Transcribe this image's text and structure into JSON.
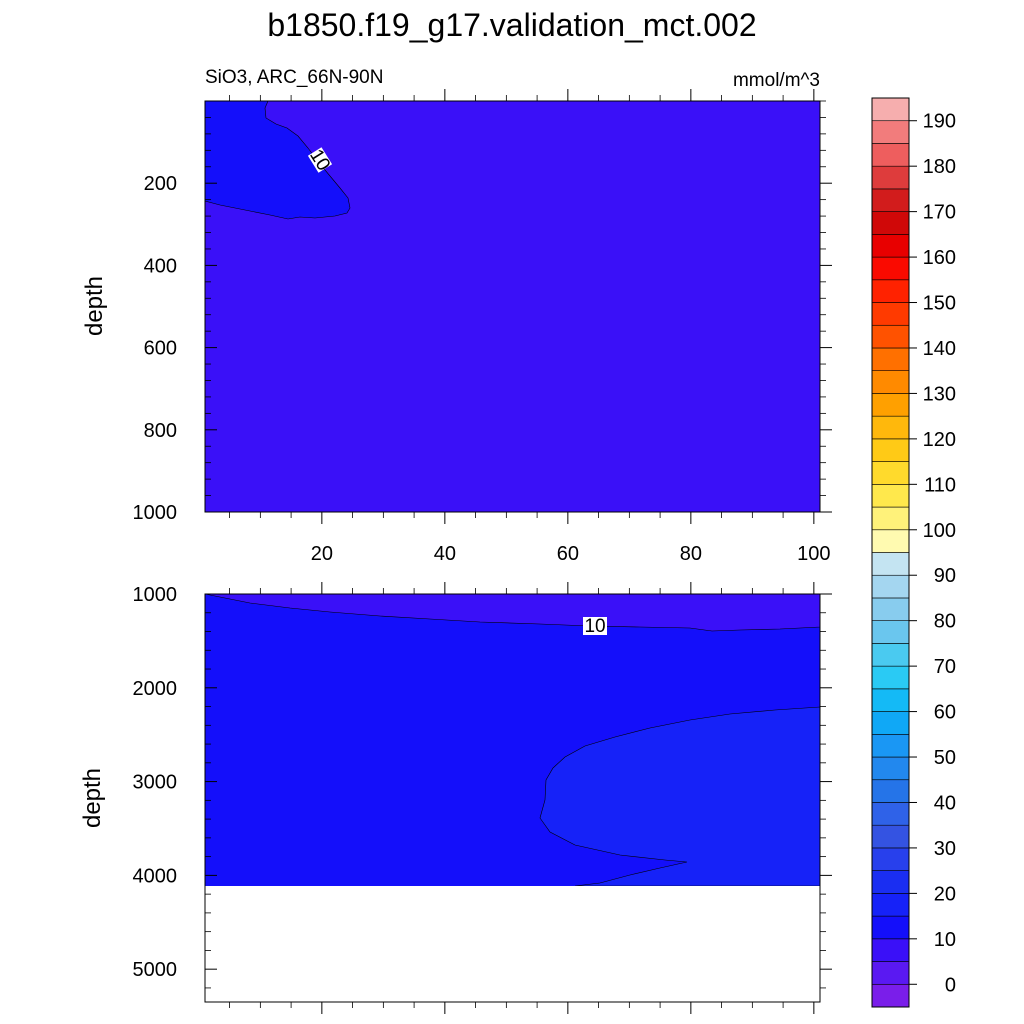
{
  "chart_data": {
    "type": "contour",
    "title": "b1850.f19_g17.validation_mct.002",
    "variable_label": "SiO3, ARC_66N-90N",
    "units": "mmol/m^3",
    "colorbar": {
      "levels": [
        -5,
        0,
        5,
        10,
        15,
        20,
        25,
        30,
        35,
        40,
        45,
        50,
        55,
        60,
        65,
        70,
        75,
        80,
        85,
        90,
        95,
        100,
        105,
        110,
        115,
        120,
        125,
        130,
        135,
        140,
        145,
        150,
        155,
        160,
        165,
        170,
        175,
        180,
        185,
        190,
        195
      ],
      "tick_labels": [
        "0",
        "10",
        "20",
        "30",
        "40",
        "50",
        "60",
        "70",
        "80",
        "90",
        "100",
        "110",
        "120",
        "130",
        "140",
        "150",
        "160",
        "170",
        "180",
        "190"
      ],
      "colors": [
        "#7A1EEA",
        "#5A19F2",
        "#3A10F8",
        "#140FFA",
        "#1622F8",
        "#1A2EF2",
        "#2840EC",
        "#3453E2",
        "#2F62E8",
        "#2574E8",
        "#2288EE",
        "#1A97F4",
        "#10A8F6",
        "#14BAF6",
        "#2ACAF4",
        "#4ACAF0",
        "#6AC6EE",
        "#88CCEE",
        "#A4D6F0",
        "#C4E4F2",
        "#FFFAB0",
        "#FFF27A",
        "#FFE84C",
        "#FFDA2C",
        "#FFCA16",
        "#FFB80C",
        "#FFA000",
        "#FF8A00",
        "#FF7000",
        "#FF5200",
        "#FF3A00",
        "#FF2200",
        "#FA0A00",
        "#E80000",
        "#D00808",
        "#D21C1C",
        "#DE3C3C",
        "#EE5E5E",
        "#F27C7C",
        "#F6AEAE"
      ]
    },
    "panels": [
      {
        "ylabel": "depth",
        "ylim": [
          1000,
          0
        ],
        "yticks": [
          200,
          400,
          600,
          800,
          1000
        ],
        "xlim": [
          1,
          101
        ],
        "xticks": [
          20,
          40,
          60,
          80,
          100
        ],
        "background_value_range": [
          5,
          10
        ],
        "contour_label": "10"
      },
      {
        "ylabel": "depth",
        "ylim": [
          5350,
          1000
        ],
        "yticks": [
          1000,
          2000,
          3000,
          4000,
          5000
        ],
        "xlim": [
          1,
          101
        ],
        "xticks": [
          20,
          40,
          60,
          80,
          100
        ],
        "ocean_floor_depth": 4130,
        "contour_label": "10"
      }
    ]
  }
}
